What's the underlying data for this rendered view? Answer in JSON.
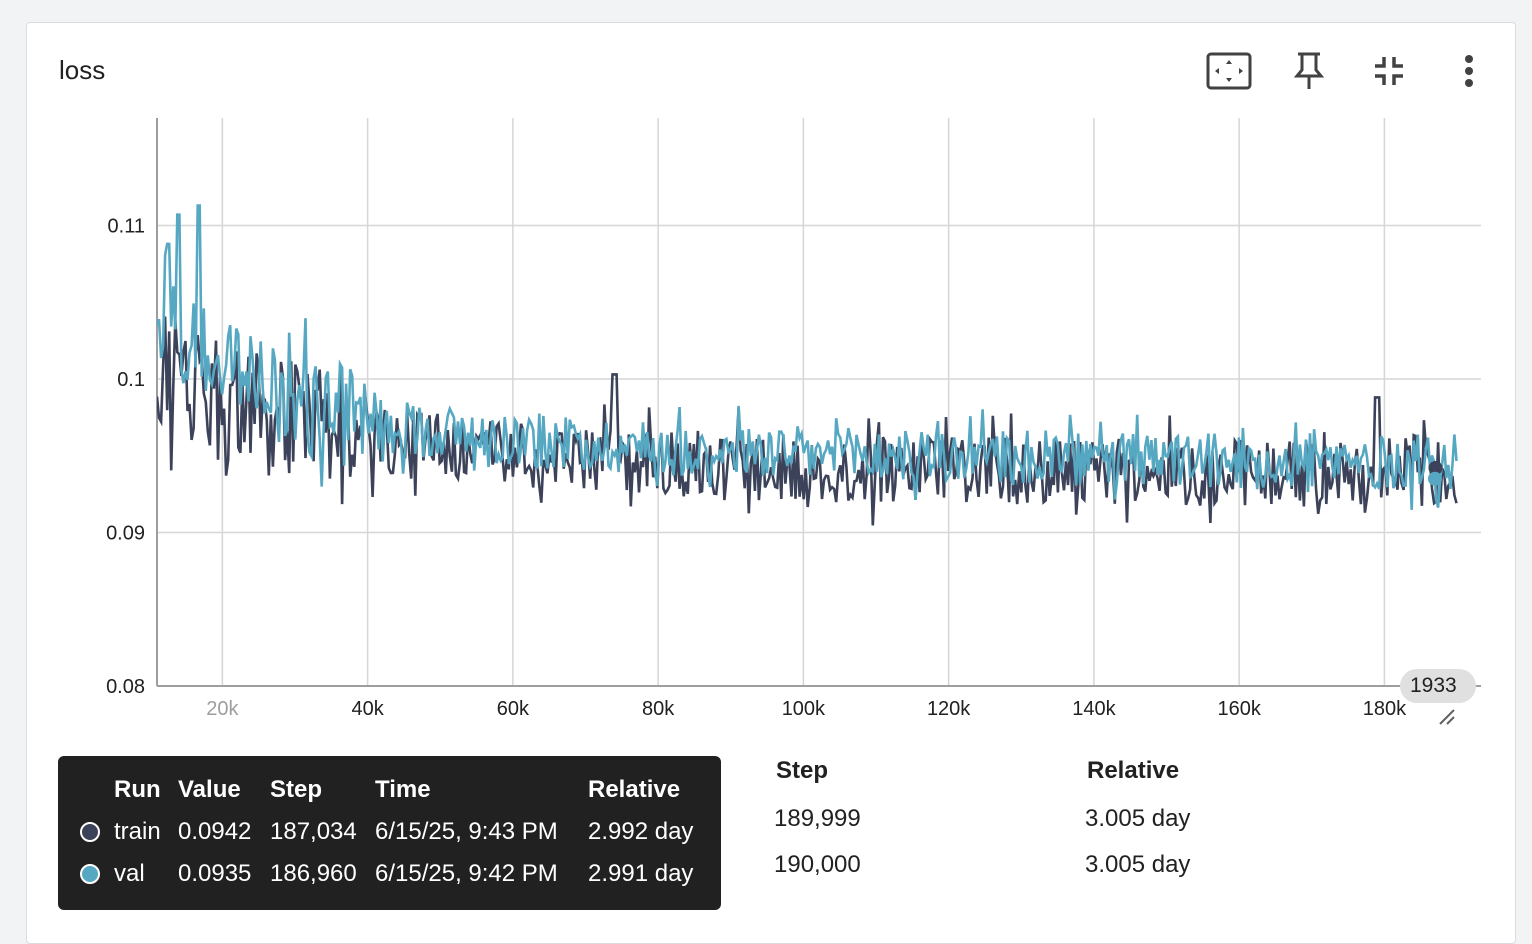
{
  "card": {
    "title": "loss",
    "toolbar": [
      {
        "name": "fit-domain-icon"
      },
      {
        "name": "pin-icon"
      },
      {
        "name": "collapse-icon"
      },
      {
        "name": "more-vert-icon"
      }
    ]
  },
  "chart_data": {
    "type": "line",
    "title": "loss",
    "xlim": [
      11000,
      193300
    ],
    "ylim": [
      0.08,
      0.117
    ],
    "x_ticks": [
      "20k",
      "40k",
      "60k",
      "80k",
      "100k",
      "120k",
      "140k",
      "160k",
      "180k"
    ],
    "y_ticks": [
      "0.11",
      "0.1",
      "0.09",
      "0.08"
    ],
    "grid": true,
    "series": [
      {
        "name": "train",
        "color": "#3b4259",
        "x": [
          11000,
          15000,
          20000,
          25000,
          30000,
          35000,
          40000,
          45000,
          50000,
          55000,
          60000,
          65000,
          70000,
          75000,
          80000,
          85000,
          90000,
          95000,
          100000,
          110000,
          120000,
          130000,
          140000,
          150000,
          160000,
          170000,
          180000,
          185000,
          190000
        ],
        "y": [
          0.1005,
          0.1,
          0.0985,
          0.0978,
          0.0972,
          0.0966,
          0.096,
          0.0958,
          0.0955,
          0.0952,
          0.095,
          0.0948,
          0.0946,
          0.0945,
          0.0944,
          0.0943,
          0.0943,
          0.0942,
          0.0942,
          0.0941,
          0.0941,
          0.094,
          0.094,
          0.094,
          0.0939,
          0.0939,
          0.094,
          0.0942,
          0.094
        ]
      },
      {
        "name": "val",
        "color": "#56a8c2",
        "x": [
          11000,
          15000,
          20000,
          25000,
          30000,
          35000,
          40000,
          45000,
          50000,
          55000,
          60000,
          65000,
          70000,
          75000,
          80000,
          85000,
          90000,
          95000,
          100000,
          110000,
          120000,
          130000,
          140000,
          150000,
          160000,
          170000,
          180000,
          185000,
          190000
        ],
        "y": [
          0.1035,
          0.1025,
          0.1005,
          0.0995,
          0.0985,
          0.0977,
          0.0972,
          0.0968,
          0.0966,
          0.0963,
          0.0961,
          0.0959,
          0.0958,
          0.0956,
          0.0955,
          0.0954,
          0.0953,
          0.0952,
          0.0951,
          0.095,
          0.0949,
          0.0948,
          0.0947,
          0.0947,
          0.0946,
          0.0946,
          0.0945,
          0.0946,
          0.0946
        ]
      }
    ],
    "noise": {
      "train": 0.0022,
      "val": 0.0018
    },
    "spikes": [
      {
        "series": "val",
        "x": 14000,
        "y": 0.1107
      },
      {
        "series": "val",
        "x": 16800,
        "y": 0.1113
      },
      {
        "series": "val",
        "x": 12500,
        "y": 0.1088
      },
      {
        "series": "train",
        "x": 74000,
        "y": 0.1003
      },
      {
        "series": "train",
        "x": 179000,
        "y": 0.0988
      }
    ]
  },
  "x_badge": "1933",
  "table": {
    "headers": {
      "step": "Step",
      "relative": "Relative"
    },
    "rows": [
      {
        "step": "189,999",
        "relative": "3.005 day"
      },
      {
        "step": "190,000",
        "relative": "3.005 day"
      }
    ]
  },
  "tooltip": {
    "headers": {
      "run": "Run",
      "value": "Value",
      "step": "Step",
      "time": "Time",
      "relative": "Relative"
    },
    "rows": [
      {
        "run": "train",
        "value": "0.0942",
        "step": "187,034",
        "time": "6/15/25, 9:43 PM",
        "relative": "2.992 day",
        "color": "#3b4259"
      },
      {
        "run": "val",
        "value": "0.0935",
        "step": "186,960",
        "time": "6/15/25, 9:42 PM",
        "relative": "2.991 day",
        "color": "#56a8c2"
      }
    ]
  }
}
